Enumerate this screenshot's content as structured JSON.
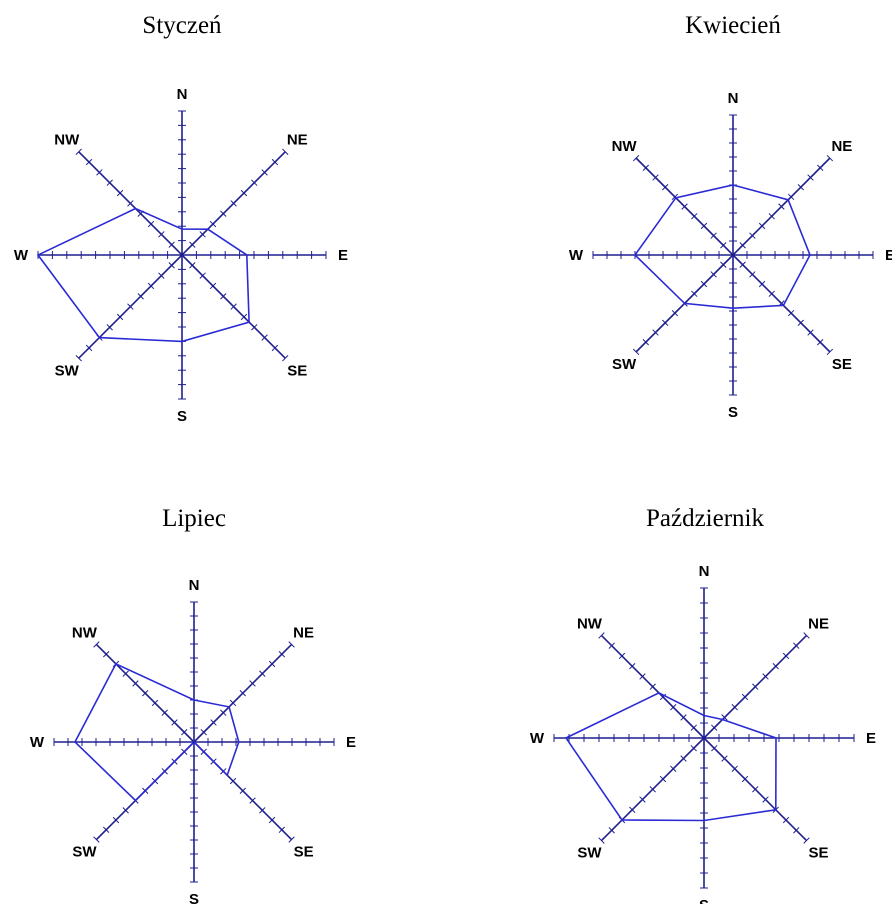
{
  "chart_data": [
    {
      "type": "radar",
      "title": "Styczeń",
      "directions": [
        "N",
        "NE",
        "E",
        "SE",
        "S",
        "SW",
        "W",
        "NW"
      ],
      "max_ticks": 10,
      "values": [
        1.8,
        2.5,
        4.5,
        6.5,
        6.0,
        8.0,
        10.0,
        4.5
      ]
    },
    {
      "type": "radar",
      "title": "Kwiecień",
      "directions": [
        "N",
        "NE",
        "E",
        "SE",
        "S",
        "SW",
        "W",
        "NW"
      ],
      "max_ticks": 10,
      "values": [
        5.0,
        5.7,
        5.5,
        5.2,
        3.8,
        5.0,
        7.0,
        5.9
      ]
    },
    {
      "type": "radar",
      "title": "Lipiec",
      "directions": [
        "N",
        "NE",
        "E",
        "SE",
        "S",
        "SW",
        "W",
        "NW"
      ],
      "max_ticks": 10,
      "values": [
        3.0,
        3.6,
        3.2,
        3.4,
        0.0,
        6.0,
        8.5,
        8.0
      ]
    },
    {
      "type": "radar",
      "title": "Październik",
      "directions": [
        "N",
        "NE",
        "E",
        "SE",
        "S",
        "SW",
        "W",
        "NW"
      ],
      "max_ticks": 10,
      "values": [
        1.5,
        1.8,
        4.8,
        7.0,
        5.5,
        8.0,
        9.2,
        4.4
      ]
    }
  ],
  "colors": {
    "axis": "#1f1f8f",
    "series": "#2b2bd6",
    "text": "#000000"
  }
}
